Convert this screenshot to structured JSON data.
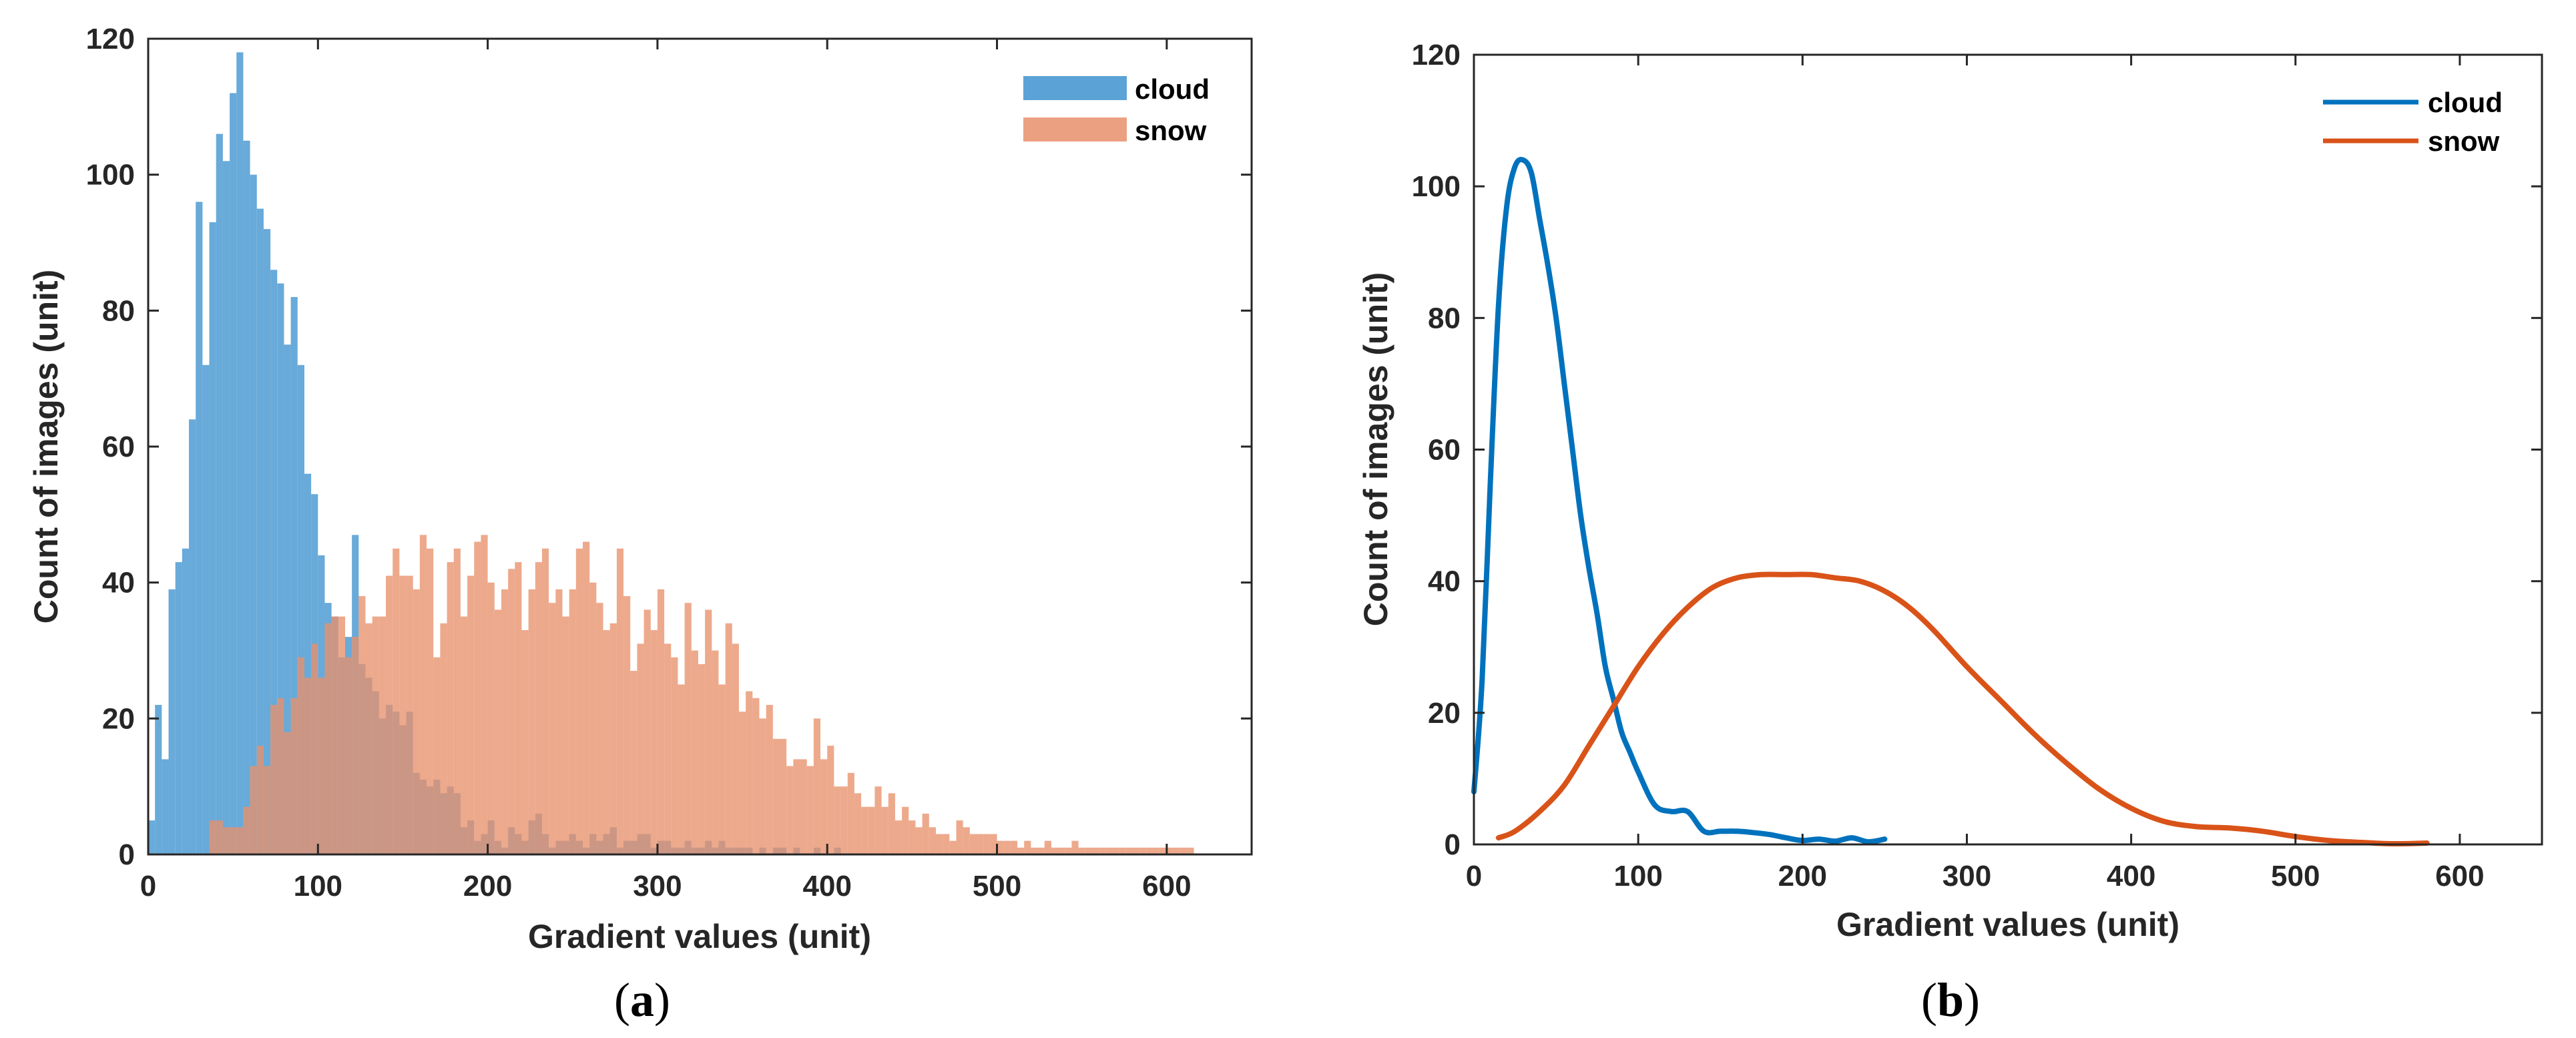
{
  "chart_data": [
    {
      "type": "bar",
      "subtype": "overlapping-histogram",
      "panel_label": {
        "open": "(",
        "letter": "a",
        "close": ")"
      },
      "xlabel": "Gradient values (unit)",
      "ylabel": "Count of images (unit)",
      "xlim": [
        0,
        650
      ],
      "ylim": [
        0,
        120
      ],
      "xticks": [
        0,
        100,
        200,
        300,
        400,
        500,
        600
      ],
      "yticks": [
        0,
        20,
        40,
        60,
        80,
        100,
        120
      ],
      "bin_width": 4,
      "grid": false,
      "legend_position": "top-right",
      "series": [
        {
          "name": "cloud",
          "color": "#5BA3D6",
          "x_start": 0,
          "values": [
            5,
            22,
            14,
            39,
            43,
            45,
            64,
            96,
            72,
            93,
            106,
            102,
            112,
            118,
            105,
            100,
            95,
            92,
            86,
            84,
            75,
            82,
            72,
            56,
            53,
            44,
            37,
            35,
            29,
            32,
            47,
            28,
            26,
            24,
            20,
            22,
            21,
            19,
            21,
            12,
            11,
            10,
            11,
            9,
            10,
            9,
            4,
            5,
            2,
            3,
            5,
            2,
            1,
            4,
            3,
            2,
            5,
            6,
            3,
            1,
            2,
            2,
            3,
            2,
            1,
            3,
            2,
            3,
            4,
            1,
            2,
            2,
            3,
            3,
            1,
            2,
            2,
            1,
            1,
            2,
            1,
            1,
            2,
            1,
            2,
            1,
            1,
            1,
            1,
            0,
            1,
            0,
            1,
            1,
            0,
            1,
            0,
            0,
            1,
            0,
            0,
            1
          ]
        },
        {
          "name": "snow",
          "color": "#E8916B",
          "x_start": 36,
          "values": [
            5,
            5,
            4,
            4,
            4,
            7,
            13,
            16,
            13,
            22,
            23,
            18,
            23,
            29,
            26,
            31,
            26,
            34,
            35,
            35,
            29,
            32,
            38,
            34,
            35,
            35,
            41,
            45,
            41,
            41,
            39,
            47,
            45,
            29,
            34,
            43,
            45,
            35,
            41,
            46,
            47,
            40,
            36,
            39,
            42,
            43,
            33,
            39,
            43,
            45,
            37,
            39,
            35,
            39,
            45,
            46,
            40,
            37,
            33,
            34,
            45,
            38,
            27,
            31,
            36,
            33,
            39,
            31,
            29,
            25,
            37,
            30,
            28,
            36,
            30,
            25,
            34,
            31,
            21,
            24,
            23,
            20,
            22,
            17,
            17,
            13,
            14,
            14,
            13,
            20,
            14,
            16,
            10,
            10,
            12,
            9,
            7,
            7,
            10,
            7,
            9,
            5,
            7,
            5,
            4,
            6,
            4,
            3,
            3,
            2,
            5,
            4,
            3,
            3,
            3,
            3,
            2,
            2,
            2,
            1,
            2,
            1,
            1,
            2,
            1,
            1,
            1,
            2,
            1,
            1,
            1,
            1,
            1,
            1,
            1,
            1,
            1,
            1,
            1,
            1,
            1,
            1,
            1,
            1,
            1
          ]
        }
      ]
    },
    {
      "type": "line",
      "subtype": "density-curve",
      "panel_label": {
        "open": "(",
        "letter": "b",
        "close": ")"
      },
      "xlabel": "Gradient values (unit)",
      "ylabel": "Count of images (unit)",
      "xlim": [
        0,
        650
      ],
      "ylim": [
        0,
        120
      ],
      "xticks": [
        0,
        100,
        200,
        300,
        400,
        500,
        600
      ],
      "yticks": [
        0,
        20,
        40,
        60,
        80,
        100,
        120
      ],
      "grid": false,
      "legend_position": "top-right",
      "series": [
        {
          "name": "cloud",
          "color": "#0072BD",
          "x": [
            0,
            5,
            10,
            15,
            20,
            25,
            30,
            35,
            40,
            45,
            50,
            55,
            60,
            65,
            70,
            75,
            80,
            85,
            90,
            95,
            100,
            110,
            120,
            130,
            140,
            150,
            160,
            170,
            180,
            190,
            200,
            210,
            220,
            230,
            240,
            250
          ],
          "y": [
            8,
            25,
            55,
            82,
            97,
            103,
            104,
            102,
            95,
            88,
            80,
            70,
            60,
            50,
            42,
            35,
            27,
            22,
            17,
            14,
            11,
            6,
            5,
            5,
            2,
            2,
            2,
            1.8,
            1.5,
            1,
            0.6,
            0.8,
            0.5,
            1,
            0.4,
            0.8
          ]
        },
        {
          "name": "snow",
          "color": "#D95319",
          "x": [
            15,
            25,
            40,
            55,
            70,
            85,
            100,
            115,
            130,
            145,
            160,
            175,
            190,
            205,
            220,
            235,
            250,
            265,
            280,
            300,
            320,
            340,
            360,
            380,
            400,
            420,
            440,
            460,
            480,
            500,
            520,
            540,
            560,
            580
          ],
          "y": [
            1,
            2,
            5,
            9,
            15,
            21,
            27,
            32,
            36,
            39,
            40.5,
            41,
            41,
            41,
            40.5,
            40,
            38.5,
            36,
            32.5,
            27,
            22,
            17,
            12.5,
            8.5,
            5.5,
            3.5,
            2.7,
            2.5,
            2,
            1.2,
            0.6,
            0.3,
            0.1,
            0.2
          ]
        }
      ]
    }
  ]
}
